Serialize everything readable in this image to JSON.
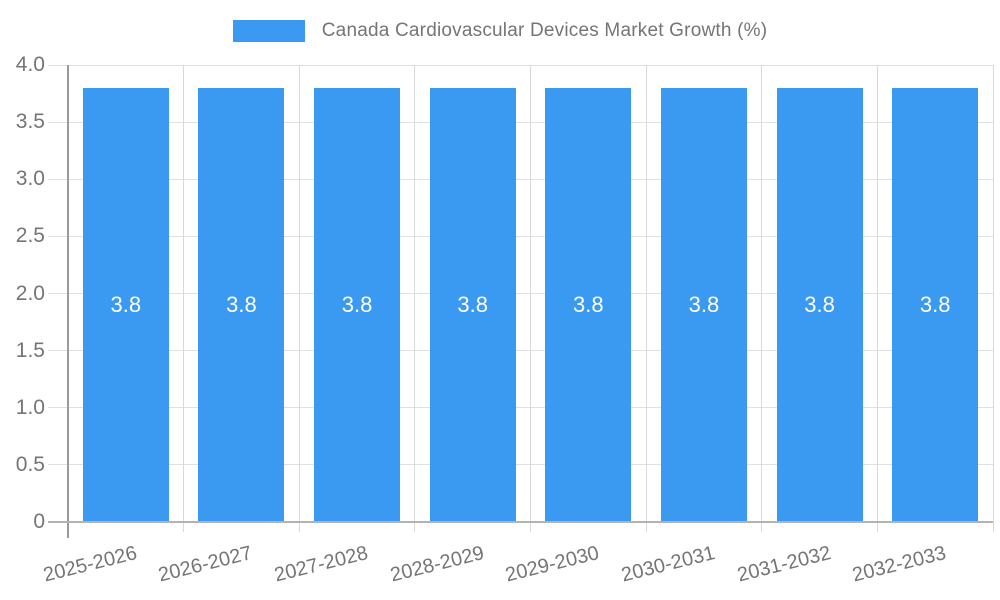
{
  "legend": {
    "label": "Canada Cardiovascular Devices Market Growth (%)"
  },
  "chart_data": {
    "type": "bar",
    "title": "Canada Cardiovascular Devices Market Growth (%)",
    "categories": [
      "2025-2026",
      "2026-2027",
      "2027-2028",
      "2028-2029",
      "2029-2030",
      "2030-2031",
      "2031-2032",
      "2032-2033"
    ],
    "values": [
      3.8,
      3.8,
      3.8,
      3.8,
      3.8,
      3.8,
      3.8,
      3.8
    ],
    "bar_value_labels": [
      "3.8",
      "3.8",
      "3.8",
      "3.8",
      "3.8",
      "3.8",
      "3.8",
      "3.8"
    ],
    "xlabel": "",
    "ylabel": "",
    "ylim": [
      0,
      4
    ],
    "yticks": [
      0,
      0.5,
      1,
      1.5,
      2,
      2.5,
      3,
      3.5,
      4
    ],
    "ytick_labels": [
      "0",
      "0.5",
      "1.0",
      "1.5",
      "2.0",
      "2.5",
      "3.0",
      "3.5",
      "4.0"
    ],
    "grid": true,
    "legend_position": "top",
    "colors": {
      "bar": "#3A99F0",
      "grid": "#e0e0e0",
      "vgrid": "#d9d9d9",
      "axis": "#9a9a9a",
      "baseline": "#b3b3b3",
      "label_text": "#757575",
      "bar_label": "#ffffff"
    }
  }
}
